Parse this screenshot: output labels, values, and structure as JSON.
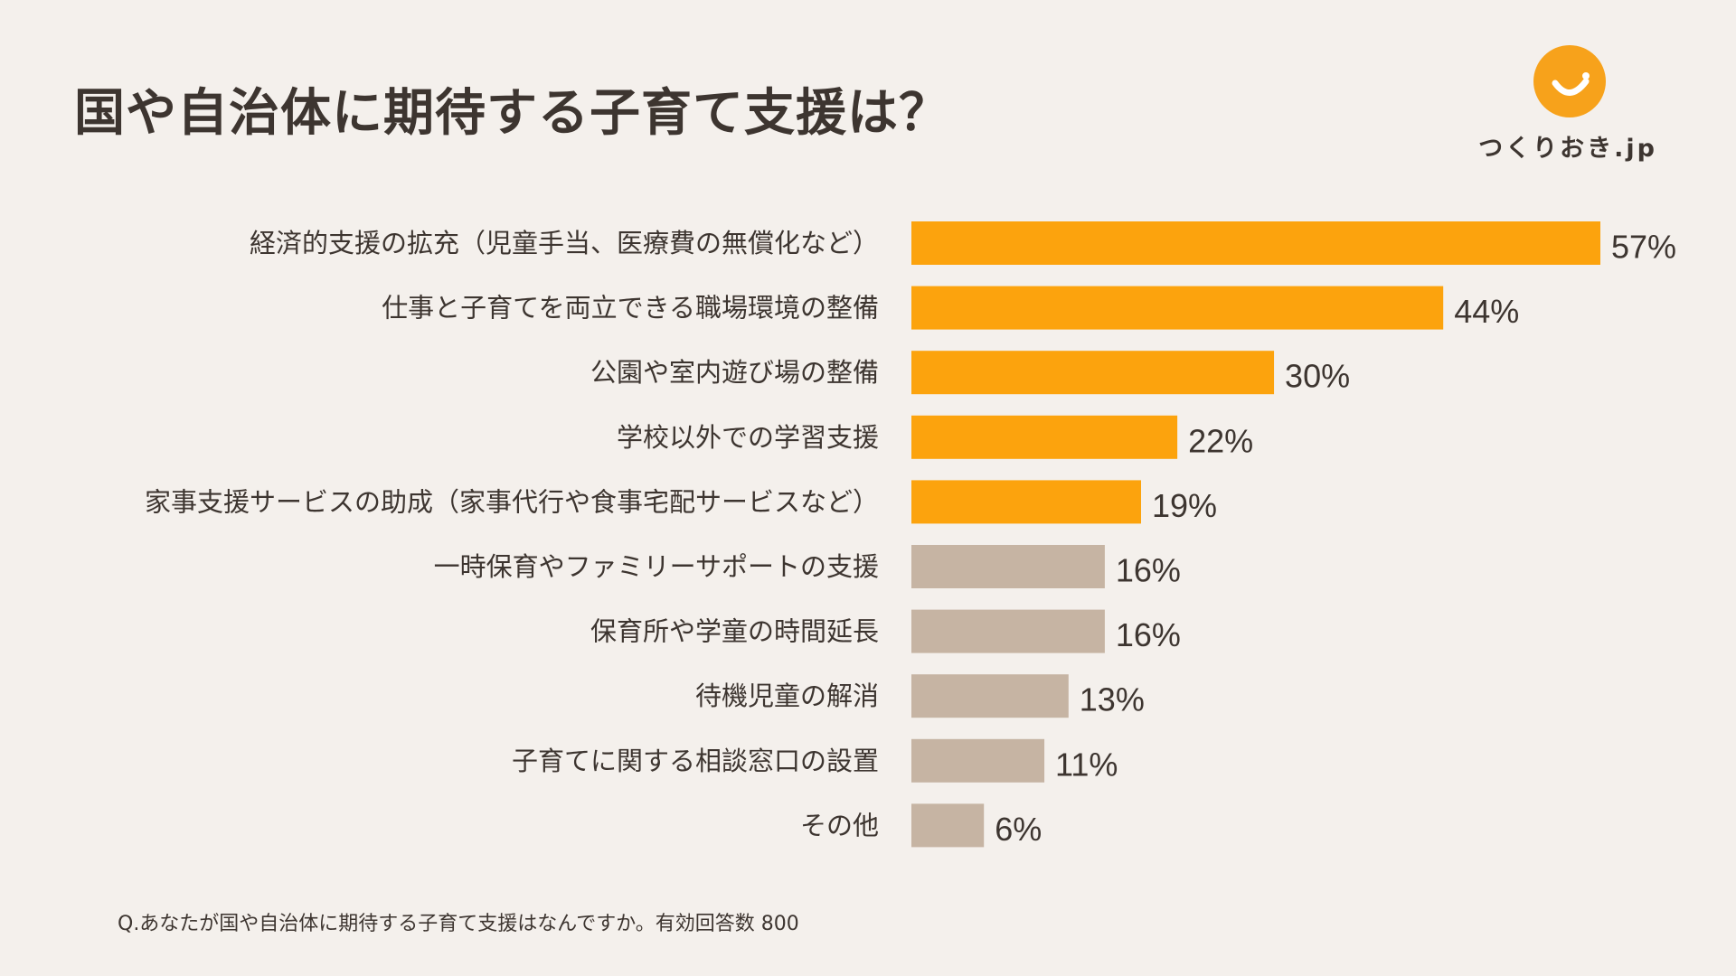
{
  "title": "国や自治体に期待する子育て支援は？",
  "logo": {
    "text": "つくりおき.jp",
    "icon": "smile-icon",
    "color": "#f7a21b"
  },
  "chart_data": {
    "type": "bar",
    "orientation": "horizontal",
    "title": "国や自治体に期待する子育て支援は？",
    "xlabel": "",
    "ylabel": "",
    "xlim": [
      0,
      57
    ],
    "unit": "%",
    "categories": [
      "経済的支援の拡充（児童手当、医療費の無償化など）",
      "仕事と子育てを両立できる職場環境の整備",
      "公園や室内遊び場の整備",
      "学校以外での学習支援",
      "家事支援サービスの助成（家事代行や食事宅配サービスなど）",
      "一時保育やファミリーサポートの支援",
      "保育所や学童の時間延長",
      "待機児童の解消",
      "子育てに関する相談窓口の設置",
      "その他"
    ],
    "values": [
      57,
      44,
      30,
      22,
      19,
      16,
      16,
      13,
      11,
      6
    ],
    "value_labels": [
      "57%",
      "44%",
      "30%",
      "22%",
      "19%",
      "16%",
      "16%",
      "13%",
      "11%",
      "6%"
    ],
    "highlight_count": 5,
    "colors": {
      "highlight": "#fca30d",
      "other": "#c6b4a3"
    }
  },
  "footnote": "Q.あなたが国や自治体に期待する子育て支援はなんですか。有効回答数 800"
}
